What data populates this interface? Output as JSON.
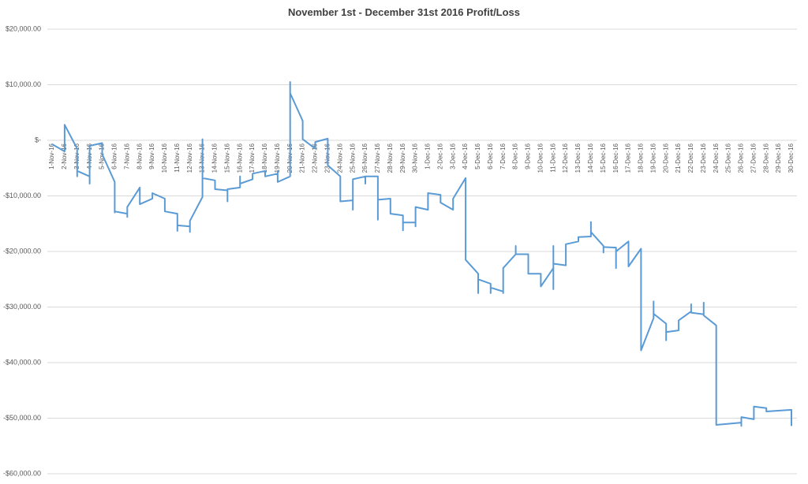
{
  "chart_data": {
    "type": "line",
    "title": "November 1st - December 31st 2016 Profit/Loss",
    "xticks": [
      "1-Nov-16",
      "2-Nov-16",
      "3-Nov-16",
      "4-Nov-16",
      "5-Nov-16",
      "6-Nov-16",
      "7-Nov-16",
      "8-Nov-16",
      "9-Nov-16",
      "10-Nov-16",
      "11-Nov-16",
      "12-Nov-16",
      "13-Nov-16",
      "14-Nov-16",
      "15-Nov-16",
      "16-Nov-16",
      "17-Nov-16",
      "18-Nov-16",
      "19-Nov-16",
      "20-Nov-16",
      "21-Nov-16",
      "22-Nov-16",
      "23-Nov-16",
      "24-Nov-16",
      "25-Nov-16",
      "26-Nov-16",
      "27-Nov-16",
      "28-Nov-16",
      "29-Nov-16",
      "30-Nov-16",
      "1-Dec-16",
      "2-Dec-16",
      "3-Dec-16",
      "4-Dec-16",
      "5-Dec-16",
      "6-Dec-16",
      "7-Dec-16",
      "8-Dec-16",
      "9-Dec-16",
      "10-Dec-16",
      "11-Dec-16",
      "12-Dec-16",
      "13-Dec-16",
      "14-Dec-16",
      "15-Dec-16",
      "16-Dec-16",
      "17-Dec-16",
      "18-Dec-16",
      "19-Dec-16",
      "20-Dec-16",
      "21-Dec-16",
      "22-Dec-16",
      "23-Dec-16",
      "24-Dec-16",
      "25-Dec-16",
      "26-Dec-16",
      "27-Dec-16",
      "28-Dec-16",
      "29-Dec-16",
      "30-Dec-16"
    ],
    "ylim": [
      -60000,
      20000
    ],
    "yticks": [
      {
        "value": -60000,
        "label": "-$60,000.00"
      },
      {
        "value": -50000,
        "label": "-$50,000.00"
      },
      {
        "value": -40000,
        "label": "-$40,000.00"
      },
      {
        "value": -30000,
        "label": "-$30,000.00"
      },
      {
        "value": -20000,
        "label": "-$20,000.00"
      },
      {
        "value": -10000,
        "label": "-$10,000.00"
      },
      {
        "value": 0,
        "label": "$-"
      },
      {
        "value": 10000,
        "label": "$10,000.00"
      },
      {
        "value": 20000,
        "label": "$20,000.00"
      }
    ],
    "grid": true,
    "color": "#5b9bd5",
    "x": [
      "1-Nov-16",
      "2-Nov-16",
      "2-Nov-16",
      "3-Nov-16",
      "3-Nov-16",
      "3-Nov-16",
      "4-Nov-16",
      "4-Nov-16",
      "4-Nov-16",
      "5-Nov-16",
      "5-Nov-16",
      "6-Nov-16",
      "6-Nov-16",
      "6-Nov-16",
      "7-Nov-16",
      "7-Nov-16",
      "7-Nov-16",
      "8-Nov-16",
      "8-Nov-16",
      "9-Nov-16",
      "9-Nov-16",
      "10-Nov-16",
      "10-Nov-16",
      "11-Nov-16",
      "11-Nov-16",
      "11-Nov-16",
      "12-Nov-16",
      "12-Nov-16",
      "12-Nov-16",
      "13-Nov-16",
      "13-Nov-16",
      "13-Nov-16",
      "14-Nov-16",
      "14-Nov-16",
      "15-Nov-16",
      "15-Nov-16",
      "15-Nov-16",
      "16-Nov-16",
      "16-Nov-16",
      "16-Nov-16",
      "17-Nov-16",
      "17-Nov-16",
      "18-Nov-16",
      "18-Nov-16",
      "19-Nov-16",
      "19-Nov-16",
      "19-Nov-16",
      "20-Nov-16",
      "20-Nov-16",
      "20-Nov-16",
      "21-Nov-16",
      "21-Nov-16",
      "22-Nov-16",
      "22-Nov-16",
      "23-Nov-16",
      "23-Nov-16",
      "24-Nov-16",
      "24-Nov-16",
      "25-Nov-16",
      "25-Nov-16",
      "25-Nov-16",
      "26-Nov-16",
      "26-Nov-16",
      "26-Nov-16",
      "27-Nov-16",
      "27-Nov-16",
      "27-Nov-16",
      "28-Nov-16",
      "28-Nov-16",
      "29-Nov-16",
      "29-Nov-16",
      "29-Nov-16",
      "30-Nov-16",
      "30-Nov-16",
      "30-Nov-16",
      "1-Dec-16",
      "1-Dec-16",
      "2-Dec-16",
      "2-Dec-16",
      "3-Dec-16",
      "3-Dec-16",
      "4-Dec-16",
      "4-Dec-16",
      "5-Dec-16",
      "5-Dec-16",
      "5-Dec-16",
      "6-Dec-16",
      "6-Dec-16",
      "6-Dec-16",
      "7-Dec-16",
      "7-Dec-16",
      "7-Dec-16",
      "8-Dec-16",
      "8-Dec-16",
      "8-Dec-16",
      "9-Dec-16",
      "9-Dec-16",
      "10-Dec-16",
      "10-Dec-16",
      "11-Dec-16",
      "11-Dec-16",
      "11-Dec-16",
      "11-Dec-16",
      "12-Dec-16",
      "12-Dec-16",
      "13-Dec-16",
      "13-Dec-16",
      "14-Dec-16",
      "14-Dec-16",
      "14-Dec-16",
      "15-Dec-16",
      "15-Dec-16",
      "15-Dec-16",
      "16-Dec-16",
      "16-Dec-16",
      "16-Dec-16",
      "17-Dec-16",
      "17-Dec-16",
      "18-Dec-16",
      "18-Dec-16",
      "19-Dec-16",
      "19-Dec-16",
      "19-Dec-16",
      "20-Dec-16",
      "20-Dec-16",
      "20-Dec-16",
      "21-Dec-16",
      "21-Dec-16",
      "22-Dec-16",
      "22-Dec-16",
      "22-Dec-16",
      "23-Dec-16",
      "23-Dec-16",
      "23-Dec-16",
      "24-Dec-16",
      "24-Dec-16",
      "26-Dec-16",
      "26-Dec-16",
      "26-Dec-16",
      "27-Dec-16",
      "27-Dec-16",
      "28-Dec-16",
      "28-Dec-16",
      "30-Dec-16",
      "30-Dec-16"
    ],
    "values": [
      -700,
      -2000,
      2800,
      -1500,
      -6500,
      -5500,
      -6500,
      -7800,
      -1000,
      -500,
      -2500,
      -7500,
      -13000,
      -12800,
      -13200,
      -13800,
      -12000,
      -8500,
      -11500,
      -10500,
      -9500,
      -10500,
      -12800,
      -13200,
      -16300,
      -15300,
      -15500,
      -16500,
      -14500,
      -10200,
      200,
      -6800,
      -7200,
      -8800,
      -9000,
      -11000,
      -8800,
      -8500,
      -6500,
      -7800,
      -7000,
      -6000,
      -5500,
      -6500,
      -6000,
      -5500,
      -7500,
      -6500,
      10500,
      8500,
      3500,
      200,
      -1500,
      -300,
      300,
      -4500,
      -6500,
      -11000,
      -10800,
      -12500,
      -7000,
      -6500,
      -7800,
      -6500,
      -6500,
      -14300,
      -10700,
      -10500,
      -13200,
      -13500,
      -16200,
      -14800,
      -14800,
      -15500,
      -12000,
      -12500,
      -9500,
      -9800,
      -11200,
      -12500,
      -10500,
      -6800,
      -21500,
      -24000,
      -27500,
      -25000,
      -25800,
      -27500,
      -26500,
      -27200,
      -27500,
      -23000,
      -20500,
      -19000,
      -20500,
      -20500,
      -24000,
      -24000,
      -26300,
      -23000,
      -26800,
      -19000,
      -22200,
      -22500,
      -18700,
      -18200,
      -17400,
      -17300,
      -14700,
      -16500,
      -19000,
      -20200,
      -19200,
      -19300,
      -23000,
      -20000,
      -18200,
      -22700,
      -19500,
      -37800,
      -32000,
      -29000,
      -31200,
      -33000,
      -36000,
      -34500,
      -34200,
      -32400,
      -30800,
      -29500,
      -31000,
      -31300,
      -29200,
      -31500,
      -33300,
      -51200,
      -50800,
      -51400,
      -49800,
      -50200,
      -47900,
      -48200,
      -48800,
      -48500,
      -51400
    ]
  }
}
